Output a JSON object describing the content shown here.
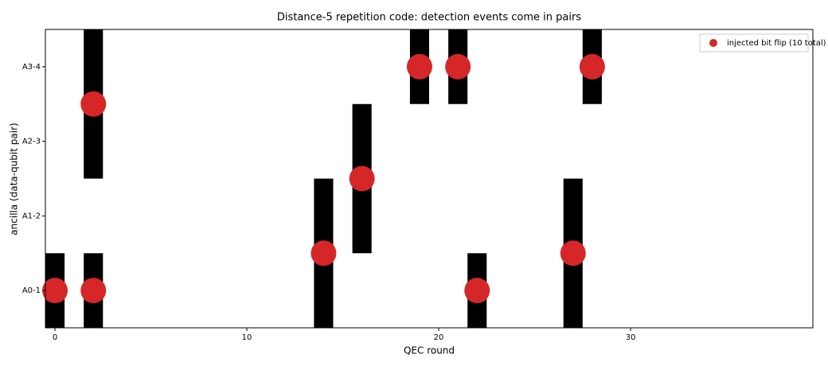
{
  "chart_data": {
    "type": "scatter",
    "title": "Distance-5 repetition code: detection events come in pairs",
    "xlabel": "QEC round",
    "ylabel": "ancilla (data-qubit pair)",
    "xlim": [
      -0.5,
      39.5
    ],
    "ylim": [
      -0.5,
      3.5
    ],
    "xticks": [
      0,
      10,
      20,
      30
    ],
    "yticks": [
      {
        "value": 0,
        "label": "A0-1"
      },
      {
        "value": 1,
        "label": "A1-2"
      },
      {
        "value": 2,
        "label": "A2-3"
      },
      {
        "value": 3,
        "label": "A3-4"
      }
    ],
    "detection_events": {
      "color": "#000000",
      "x": [
        0,
        2,
        2,
        2,
        14,
        14,
        16,
        16,
        19,
        21,
        22,
        27,
        27,
        28
      ],
      "y": [
        0,
        0,
        2,
        3,
        0,
        1,
        1,
        2,
        3,
        3,
        0,
        0,
        1,
        3
      ]
    },
    "series": [
      {
        "name": "injected bit flip (10 total)",
        "color": "#d62728",
        "x": [
          0,
          2,
          2,
          14,
          16,
          19,
          21,
          22,
          27,
          28
        ],
        "values": [
          0,
          0,
          2.5,
          0.5,
          1.5,
          3,
          3,
          0,
          0.5,
          3
        ]
      }
    ],
    "legend": "upper right"
  }
}
